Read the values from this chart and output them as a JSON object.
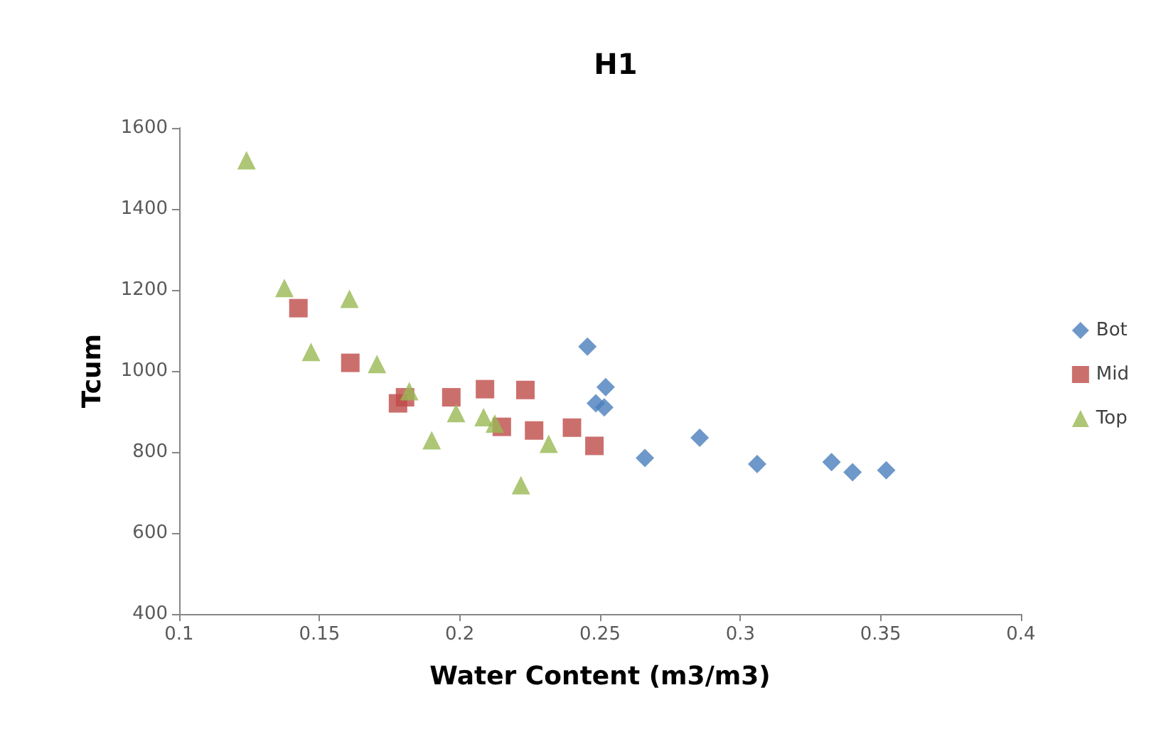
{
  "chart_data": {
    "type": "scatter",
    "title": "H1",
    "xlabel": "Water Content (m3/m3)",
    "ylabel": "Tcum",
    "xlim": [
      0.1,
      0.4
    ],
    "xticks": [
      0.1,
      0.15,
      0.2,
      0.25,
      0.3,
      0.35,
      0.4
    ],
    "ylim": [
      400,
      1600
    ],
    "yticks": [
      400,
      600,
      800,
      1000,
      1200,
      1400,
      1600
    ],
    "grid": false,
    "legend": "right",
    "series": [
      {
        "name": "Bot",
        "color": "#4a7ebb",
        "marker": "diamond",
        "x": [
          0.2455,
          0.252,
          0.2485,
          0.2515,
          0.266,
          0.2855,
          0.306,
          0.3325,
          0.34,
          0.352
        ],
        "values": [
          1060,
          960,
          920,
          910,
          785,
          835,
          770,
          775,
          750,
          755
        ]
      },
      {
        "name": "Mid",
        "color": "#be4b48",
        "marker": "square",
        "x": [
          0.1425,
          0.161,
          0.178,
          0.1805,
          0.1957,
          0.197,
          0.209,
          0.2234,
          0.2265,
          0.24,
          0.248,
          0.215
        ],
        "values": [
          1155,
          1020,
          920,
          935,
          null,
          935,
          955,
          953,
          853,
          860,
          815,
          862
        ]
      },
      {
        "name": "Top",
        "color": "#98b954",
        "marker": "triangle",
        "x": [
          0.124,
          0.1375,
          0.1607,
          0.147,
          0.1705,
          0.182,
          0.1987,
          0.19,
          0.2085,
          0.2125,
          0.2317,
          0.2218
        ],
        "values": [
          1520,
          1205,
          1178,
          1047,
          1017,
          950,
          896,
          829,
          886,
          870,
          820,
          718
        ]
      }
    ]
  }
}
